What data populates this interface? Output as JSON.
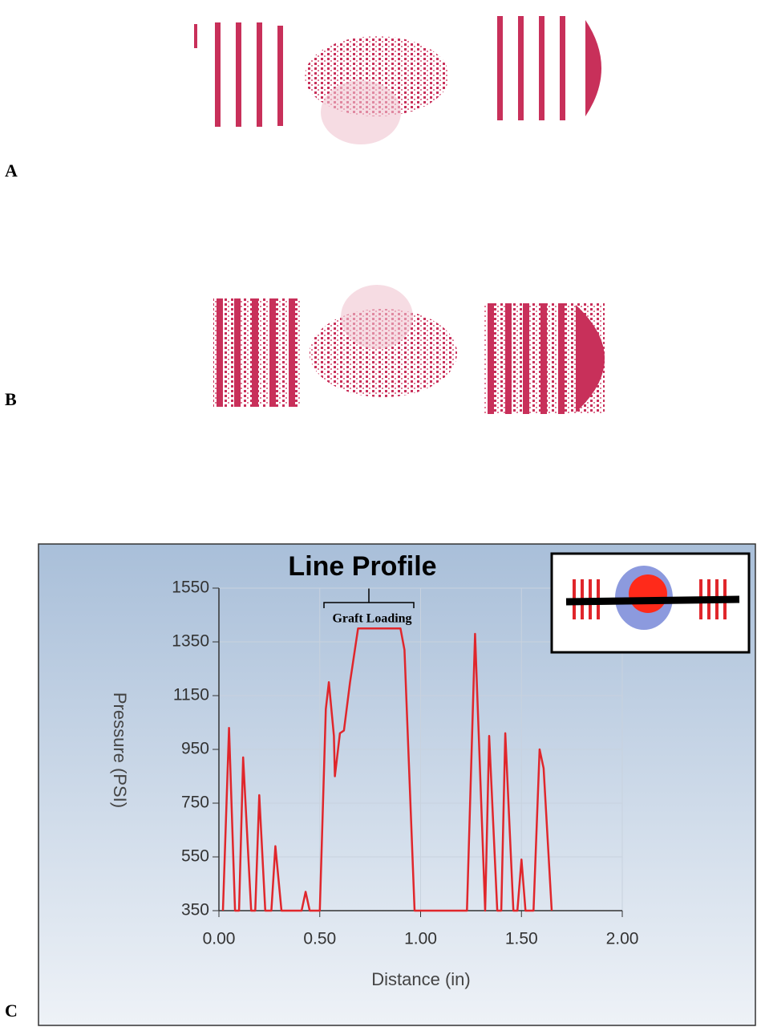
{
  "panel_labels": [
    "A",
    "B",
    "C"
  ],
  "chart_data": {
    "type": "line",
    "title": "Line Profile",
    "annotation": "Graft Loading",
    "xlabel": "Distance (in)",
    "ylabel": "Pressure (PSI)",
    "color": "#e0262b",
    "grid": true,
    "x": [
      0.02,
      0.05,
      0.08,
      0.1,
      0.12,
      0.16,
      0.18,
      0.2,
      0.23,
      0.26,
      0.28,
      0.31,
      0.41,
      0.43,
      0.45,
      0.5,
      0.53,
      0.545,
      0.57,
      0.575,
      0.6,
      0.62,
      0.65,
      0.67,
      0.69,
      0.9,
      0.92,
      0.97,
      1.23,
      1.27,
      1.32,
      1.34,
      1.38,
      1.4,
      1.42,
      1.46,
      1.48,
      1.5,
      1.52,
      1.56,
      1.59,
      1.61,
      1.65
    ],
    "values": [
      350,
      1030,
      350,
      350,
      920,
      350,
      350,
      780,
      350,
      350,
      590,
      350,
      350,
      420,
      350,
      350,
      1100,
      1200,
      1000,
      850,
      1010,
      1020,
      1200,
      1300,
      1400,
      1400,
      1320,
      350,
      350,
      1380,
      350,
      1000,
      350,
      350,
      1010,
      350,
      350,
      540,
      350,
      350,
      950,
      880,
      350
    ],
    "xlim": [
      0,
      2
    ],
    "ylim": [
      350,
      1550
    ],
    "xticks": [
      {
        "value": 0,
        "label": "0.00"
      },
      {
        "value": 0.5,
        "label": "0.50"
      },
      {
        "value": 1,
        "label": "1.00"
      },
      {
        "value": 1.5,
        "label": "1.50"
      },
      {
        "value": 2,
        "label": "2.00"
      }
    ],
    "yticks": [
      350,
      550,
      750,
      950,
      1150,
      1350,
      1550
    ]
  }
}
